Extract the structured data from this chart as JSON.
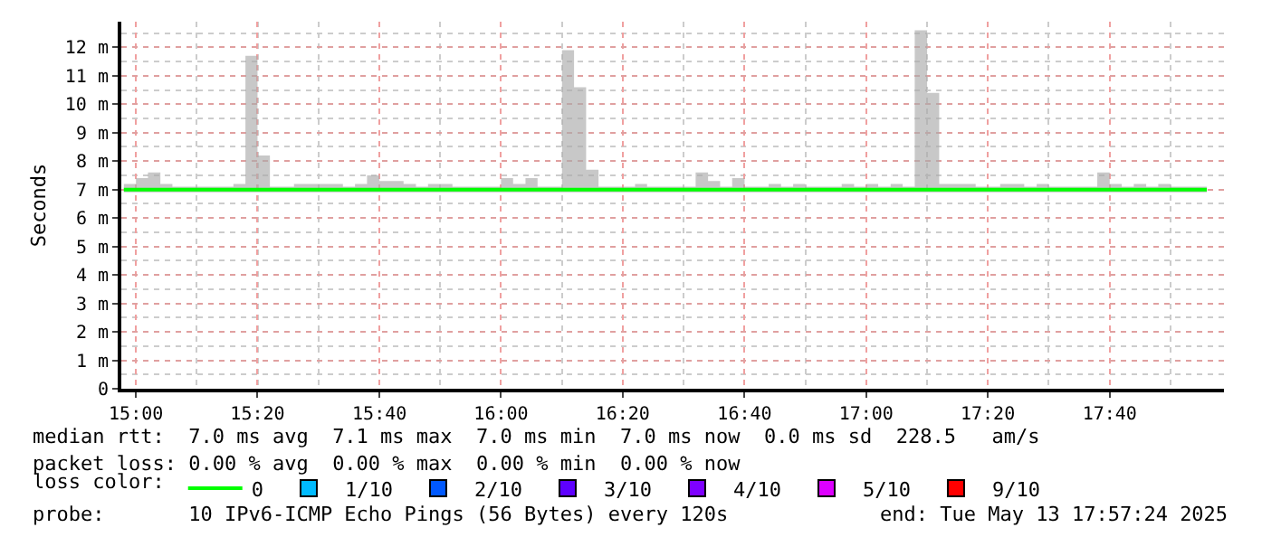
{
  "chart_data": {
    "type": "line",
    "ylabel": "Seconds",
    "x": [
      14.967,
      15.0,
      15.033,
      15.067,
      15.1,
      15.133,
      15.167,
      15.2,
      15.233,
      15.267,
      15.3,
      15.333,
      15.367,
      15.4,
      15.433,
      15.467,
      15.5,
      15.533,
      15.567,
      15.6,
      15.633,
      15.667,
      15.7,
      15.733,
      15.767,
      15.8,
      15.833,
      15.867,
      15.9,
      15.933,
      15.967,
      16.0,
      16.033,
      16.067,
      16.1,
      16.133,
      16.167,
      16.2,
      16.233,
      16.267,
      16.3,
      16.333,
      16.367,
      16.4,
      16.433,
      16.467,
      16.5,
      16.533,
      16.567,
      16.6,
      16.633,
      16.667,
      16.7,
      16.733,
      16.767,
      16.8,
      16.833,
      16.867,
      16.9,
      16.933,
      16.967,
      17.0,
      17.033,
      17.067,
      17.1,
      17.133,
      17.167,
      17.2,
      17.233,
      17.267,
      17.3,
      17.333,
      17.367,
      17.4,
      17.433,
      17.467,
      17.5,
      17.533,
      17.567,
      17.6,
      17.633,
      17.667,
      17.7,
      17.733,
      17.767,
      17.8,
      17.833,
      17.867,
      17.9,
      17.933
    ],
    "series": [
      {
        "name": "0",
        "color": "#00ff00",
        "values": [
          7.0,
          7.0,
          7.0,
          7.0,
          7.0,
          7.0,
          7.0,
          7.0,
          7.0,
          7.0,
          7.0,
          7.0,
          7.0,
          7.0,
          7.0,
          7.0,
          7.0,
          7.0,
          7.0,
          7.0,
          7.0,
          7.0,
          7.0,
          7.0,
          7.0,
          7.0,
          7.0,
          7.0,
          7.0,
          7.0,
          7.0,
          7.0,
          7.0,
          7.0,
          7.0,
          7.0,
          7.0,
          7.0,
          7.0,
          7.0,
          7.0,
          7.0,
          7.0,
          7.0,
          7.0,
          7.0,
          7.0,
          7.0,
          7.0,
          7.0,
          7.0,
          7.0,
          7.0,
          7.0,
          7.0,
          7.0,
          7.0,
          7.0,
          7.0,
          7.0,
          7.0,
          7.0,
          7.0,
          7.0,
          7.0,
          7.0,
          7.0,
          7.0,
          7.0,
          7.0,
          7.0,
          7.0,
          7.0,
          7.0,
          7.0,
          7.0,
          7.0,
          7.0,
          7.0,
          7.0,
          7.0,
          7.0,
          7.0,
          7.0,
          7.0,
          7.0,
          7.0,
          7.0,
          7.0,
          7.0
        ],
        "lower": [
          6.9,
          6.9,
          6.9,
          6.9,
          6.9,
          6.9,
          6.9,
          6.9,
          6.9,
          6.9,
          6.9,
          6.9,
          6.9,
          6.9,
          6.9,
          6.9,
          6.9,
          6.9,
          6.9,
          6.9,
          6.9,
          6.9,
          6.9,
          6.9,
          6.9,
          6.9,
          6.9,
          6.9,
          6.9,
          6.9,
          6.9,
          6.9,
          6.9,
          6.9,
          6.9,
          6.9,
          6.9,
          6.9,
          6.9,
          6.9,
          6.9,
          6.9,
          6.9,
          6.9,
          6.9,
          6.9,
          6.9,
          6.9,
          6.9,
          6.9,
          6.9,
          6.9,
          6.9,
          6.9,
          6.9,
          6.9,
          6.9,
          6.9,
          6.9,
          6.9,
          6.9,
          6.9,
          6.9,
          6.9,
          6.9,
          6.9,
          6.9,
          6.9,
          6.9,
          6.9,
          6.9,
          6.9,
          6.9,
          6.9,
          6.9,
          6.9,
          6.9,
          6.9,
          6.9,
          6.9,
          6.9,
          6.9,
          6.9,
          6.9,
          6.9,
          6.9,
          6.9,
          6.9,
          6.9,
          6.9
        ],
        "upper": [
          7.2,
          7.4,
          7.6,
          7.2,
          7.1,
          7.1,
          7.1,
          7.1,
          7.1,
          7.2,
          11.7,
          8.2,
          7.1,
          7.1,
          7.2,
          7.2,
          7.2,
          7.2,
          7.1,
          7.2,
          7.5,
          7.3,
          7.3,
          7.2,
          7.1,
          7.2,
          7.2,
          7.1,
          7.1,
          7.1,
          7.1,
          7.4,
          7.2,
          7.4,
          7.1,
          7.1,
          11.9,
          10.6,
          7.7,
          7.1,
          7.1,
          7.1,
          7.2,
          7.1,
          7.1,
          7.1,
          7.1,
          7.6,
          7.3,
          7.1,
          7.4,
          7.1,
          7.1,
          7.2,
          7.1,
          7.2,
          7.1,
          7.1,
          7.1,
          7.2,
          7.1,
          7.2,
          7.1,
          7.2,
          7.1,
          12.6,
          10.4,
          7.2,
          7.2,
          7.2,
          7.1,
          7.1,
          7.2,
          7.2,
          7.1,
          7.2,
          7.1,
          7.1,
          7.1,
          7.1,
          7.6,
          7.2,
          7.1,
          7.2,
          7.1,
          7.2,
          7.1,
          7.1,
          7.1,
          7.1
        ]
      },
      {
        "name": "1/10",
        "color": "#00bbff",
        "values": [
          null,
          null,
          null,
          null,
          null,
          null,
          null,
          null,
          null,
          null,
          null,
          null,
          null,
          null,
          null,
          null,
          null,
          null,
          null,
          null,
          null,
          null,
          null,
          null,
          null,
          null,
          null,
          null,
          null,
          null,
          null,
          null,
          null,
          null,
          null,
          null,
          null,
          null,
          null,
          null,
          null,
          null,
          null,
          null,
          null,
          null,
          null,
          null,
          null,
          null,
          null,
          null,
          null,
          null,
          null,
          null,
          null,
          null,
          null,
          null,
          null,
          null,
          null,
          null,
          null,
          null,
          null,
          null,
          null,
          null,
          null,
          null,
          null,
          null,
          null,
          null,
          null,
          null,
          null,
          null,
          null,
          null,
          null,
          null,
          null,
          null,
          null,
          null,
          null,
          null
        ]
      },
      {
        "name": "2/10",
        "color": "#0059ff",
        "values": [
          null,
          null,
          null,
          null,
          null,
          null,
          null,
          null,
          null,
          null,
          null,
          null,
          null,
          null,
          null,
          null,
          null,
          null,
          null,
          null,
          null,
          null,
          null,
          null,
          null,
          null,
          null,
          null,
          null,
          null,
          null,
          null,
          null,
          null,
          null,
          null,
          null,
          null,
          null,
          null,
          null,
          null,
          null,
          null,
          null,
          null,
          null,
          null,
          null,
          null,
          null,
          null,
          null,
          null,
          null,
          null,
          null,
          null,
          null,
          null,
          null,
          null,
          null,
          null,
          null,
          null,
          null,
          null,
          null,
          null,
          null,
          null,
          null,
          null,
          null,
          null,
          null,
          null,
          null,
          null,
          null,
          null,
          null,
          null,
          null,
          null,
          null,
          null,
          null,
          null
        ]
      },
      {
        "name": "3/10",
        "color": "#5e00ff",
        "values": [
          null,
          null,
          null,
          null,
          null,
          null,
          null,
          null,
          null,
          null,
          null,
          null,
          null,
          null,
          null,
          null,
          null,
          null,
          null,
          null,
          null,
          null,
          null,
          null,
          null,
          null,
          null,
          null,
          null,
          null,
          null,
          null,
          null,
          null,
          null,
          null,
          null,
          null,
          null,
          null,
          null,
          null,
          null,
          null,
          null,
          null,
          null,
          null,
          null,
          null,
          null,
          null,
          null,
          null,
          null,
          null,
          null,
          null,
          null,
          null,
          null,
          null,
          null,
          null,
          null,
          null,
          null,
          null,
          null,
          null,
          null,
          null,
          null,
          null,
          null,
          null,
          null,
          null,
          null,
          null,
          null,
          null,
          null,
          null,
          null,
          null,
          null,
          null,
          null,
          null
        ]
      },
      {
        "name": "4/10",
        "color": "#7e00ff",
        "values": [
          null,
          null,
          null,
          null,
          null,
          null,
          null,
          null,
          null,
          null,
          null,
          null,
          null,
          null,
          null,
          null,
          null,
          null,
          null,
          null,
          null,
          null,
          null,
          null,
          null,
          null,
          null,
          null,
          null,
          null,
          null,
          null,
          null,
          null,
          null,
          null,
          null,
          null,
          null,
          null,
          null,
          null,
          null,
          null,
          null,
          null,
          null,
          null,
          null,
          null,
          null,
          null,
          null,
          null,
          null,
          null,
          null,
          null,
          null,
          null,
          null,
          null,
          null,
          null,
          null,
          null,
          null,
          null,
          null,
          null,
          null,
          null,
          null,
          null,
          null,
          null,
          null,
          null,
          null,
          null,
          null,
          null,
          null,
          null,
          null,
          null,
          null,
          null,
          null,
          null
        ]
      },
      {
        "name": "5/10",
        "color": "#dd00ff",
        "values": [
          null,
          null,
          null,
          null,
          null,
          null,
          null,
          null,
          null,
          null,
          null,
          null,
          null,
          null,
          null,
          null,
          null,
          null,
          null,
          null,
          null,
          null,
          null,
          null,
          null,
          null,
          null,
          null,
          null,
          null,
          null,
          null,
          null,
          null,
          null,
          null,
          null,
          null,
          null,
          null,
          null,
          null,
          null,
          null,
          null,
          null,
          null,
          null,
          null,
          null,
          null,
          null,
          null,
          null,
          null,
          null,
          null,
          null,
          null,
          null,
          null,
          null,
          null,
          null,
          null,
          null,
          null,
          null,
          null,
          null,
          null,
          null,
          null,
          null,
          null,
          null,
          null,
          null,
          null,
          null,
          null,
          null,
          null,
          null,
          null,
          null,
          null,
          null,
          null,
          null
        ]
      },
      {
        "name": "9/10",
        "color": "#ff0000",
        "values": [
          null,
          null,
          null,
          null,
          null,
          null,
          null,
          null,
          null,
          null,
          null,
          null,
          null,
          null,
          null,
          null,
          null,
          null,
          null,
          null,
          null,
          null,
          null,
          null,
          null,
          null,
          null,
          null,
          null,
          null,
          null,
          null,
          null,
          null,
          null,
          null,
          null,
          null,
          null,
          null,
          null,
          null,
          null,
          null,
          null,
          null,
          null,
          null,
          null,
          null,
          null,
          null,
          null,
          null,
          null,
          null,
          null,
          null,
          null,
          null,
          null,
          null,
          null,
          null,
          null,
          null,
          null,
          null,
          null,
          null,
          null,
          null,
          null,
          null,
          null,
          null,
          null,
          null,
          null,
          null,
          null,
          null,
          null,
          null,
          null,
          null,
          null,
          null,
          null,
          null
        ]
      }
    ],
    "xlim": [
      14.96,
      17.98
    ],
    "xticks": [
      {
        "value": 15.0,
        "label": "15:00"
      },
      {
        "value": 15.333,
        "label": "15:20"
      },
      {
        "value": 15.667,
        "label": "15:40"
      },
      {
        "value": 16.0,
        "label": "16:00"
      },
      {
        "value": 16.333,
        "label": "16:20"
      },
      {
        "value": 16.667,
        "label": "16:40"
      },
      {
        "value": 17.0,
        "label": "17:00"
      },
      {
        "value": 17.333,
        "label": "17:20"
      },
      {
        "value": 17.667,
        "label": "17:40"
      }
    ],
    "ylim": [
      0,
      12.9
    ],
    "yticks": [
      0,
      {
        "value": 1,
        "label": "1 m"
      },
      {
        "value": 2,
        "label": "2 m"
      },
      {
        "value": 3,
        "label": "3 m"
      },
      {
        "value": 4,
        "label": "4 m"
      },
      {
        "value": 5,
        "label": "5 m"
      },
      {
        "value": 6,
        "label": "6 m"
      },
      {
        "value": 7,
        "label": "7 m"
      },
      {
        "value": 8,
        "label": "8 m"
      },
      {
        "value": 9,
        "label": "9 m"
      },
      {
        "value": 10,
        "label": "10 m"
      },
      {
        "value": 11,
        "label": "11 m"
      },
      {
        "value": 12,
        "label": "12 m"
      }
    ],
    "grid": true,
    "legend": "bottom",
    "legend_title": "loss color:",
    "annotations": [
      "median rtt:  7.0 ms avg  7.1 ms max  7.0 ms min  7.0 ms now  0.0 ms sd  228.5   am/s",
      "packet loss: 0.00 % avg  0.00 % max  0.00 % min  0.00 % now",
      "probe:       10 IPv6-ICMP Echo Pings (56 Bytes) every 120s",
      "end: Tue May 13 17:57:24 2025"
    ]
  }
}
